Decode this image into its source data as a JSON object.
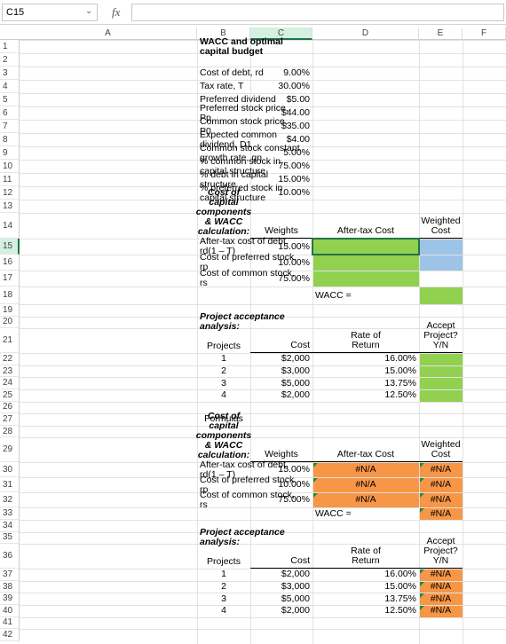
{
  "formula_bar": {
    "name_box": "C15",
    "fx": "fx"
  },
  "column_headers": [
    "A",
    "B",
    "C",
    "D",
    "E",
    "F"
  ],
  "row_headers": [
    1,
    2,
    3,
    4,
    5,
    6,
    7,
    8,
    9,
    10,
    11,
    12,
    13,
    14,
    15,
    16,
    17,
    18,
    19,
    20,
    21,
    22,
    23,
    24,
    25,
    26,
    27,
    28,
    29,
    30,
    31,
    32,
    33,
    34,
    35,
    36,
    37,
    38,
    39,
    40,
    41,
    42
  ],
  "sheet": {
    "rows": [
      {
        "A": "WACC and optimal capital budget"
      },
      {},
      {
        "A": "Cost of debt, rd",
        "B": "9.00%"
      },
      {
        "A": "Tax rate, T",
        "B": "30.00%"
      },
      {
        "A": "Preferred dividend",
        "B": "$5.00"
      },
      {
        "A": "Preferred stock price, Pp",
        "B": "$44.00"
      },
      {
        "A": "Common stock price, P0",
        "B": "$35.00"
      },
      {
        "A": "Expected common dividend, D1",
        "B": "$4.00"
      },
      {
        "A": "Common stock constant growth rate, gn",
        "B": "5.00%"
      },
      {
        "A": "% common stock in capital structure",
        "B": "75.00%"
      },
      {
        "A": "% debt in capital structure",
        "B": "15.00%"
      },
      {
        "A": "% preferred stock in capital structure",
        "B": "10.00%"
      },
      {},
      {
        "A": "Cost of capital components\n& WACC calculation:",
        "B": "Weights",
        "C": "After-tax Cost",
        "D": "Weighted Cost"
      },
      {
        "A": "After-tax cost of debt, rd(1 – T)",
        "B": "15.00%"
      },
      {
        "A": "Cost of preferred stock, rp",
        "B": "10.00%"
      },
      {
        "A": "Cost of common stock, rs",
        "B": "75.00%"
      },
      {
        "C": "WACC ="
      },
      {},
      {
        "A": "Project acceptance analysis:"
      },
      {
        "A": "Projects",
        "B": "Cost",
        "C": "Rate of\nReturn",
        "D": "Accept Project? Y/N"
      },
      {
        "A": 1,
        "B": "$2,000",
        "C": "16.00%"
      },
      {
        "A": 2,
        "B": "$3,000",
        "C": "15.00%"
      },
      {
        "A": 3,
        "B": "$5,000",
        "C": "13.75%"
      },
      {
        "A": 4,
        "B": "$2,000",
        "C": "12.50%"
      },
      {},
      {
        "A": "Formulas"
      },
      {},
      {
        "A": "Cost of capital components\n& WACC calculation:",
        "B": "Weights",
        "C": "After-tax Cost",
        "D": "Weighted Cost"
      },
      {
        "A": "After-tax cost of debt, rd(1 – T)",
        "B": "15.00%",
        "C": "#N/A",
        "D": "#N/A"
      },
      {
        "A": "Cost of preferred stock, rp",
        "B": "10.00%",
        "C": "#N/A",
        "D": "#N/A"
      },
      {
        "A": "Cost of common stock, rs",
        "B": "75.00%",
        "C": "#N/A",
        "D": "#N/A"
      },
      {
        "C": "WACC =",
        "D": "#N/A"
      },
      {},
      {
        "A": "Project acceptance analysis:"
      },
      {
        "A": "Projects",
        "B": "Cost",
        "C": "Rate of\nReturn",
        "D": "Accept Project? Y/N"
      },
      {
        "A": 1,
        "B": "$2,000",
        "C": "16.00%",
        "D": "#N/A"
      },
      {
        "A": 2,
        "B": "$3,000",
        "C": "15.00%",
        "D": "#N/A"
      },
      {
        "A": 3,
        "B": "$5,000",
        "C": "13.75%",
        "D": "#N/A"
      },
      {
        "A": 4,
        "B": "$2,000",
        "C": "12.50%",
        "D": "#N/A"
      },
      {},
      {}
    ]
  }
}
